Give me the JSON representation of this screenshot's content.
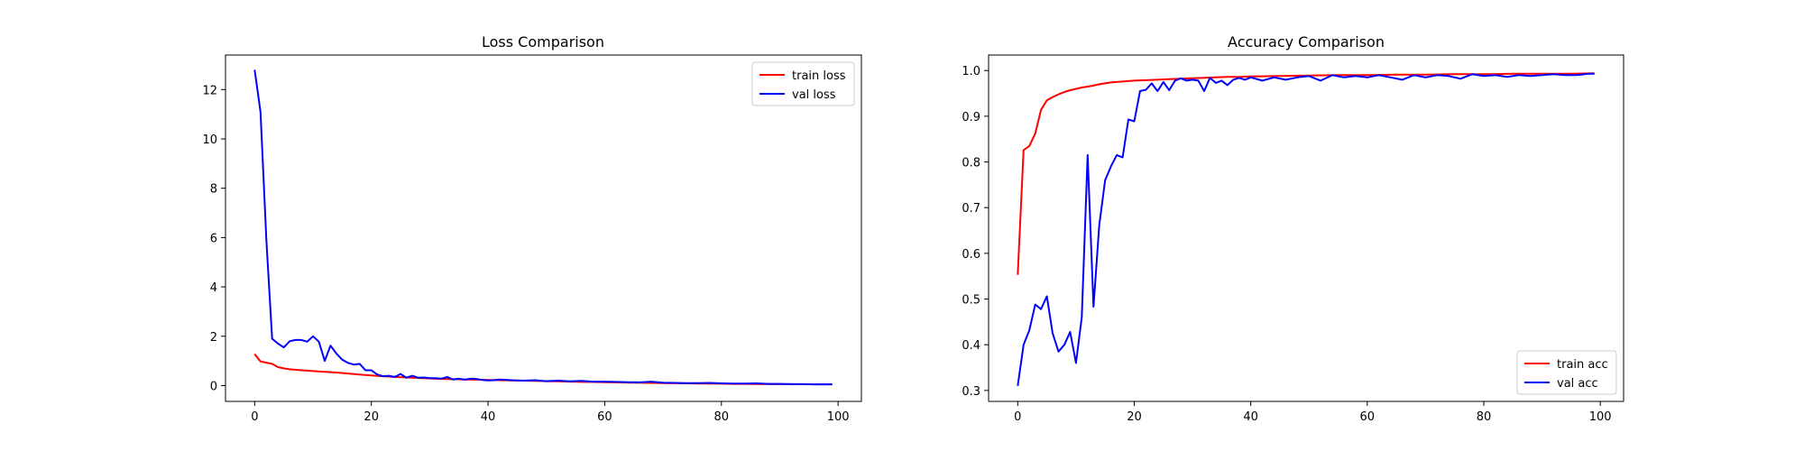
{
  "chart_data": [
    {
      "type": "line",
      "title": "Loss Comparison",
      "xlabel": "",
      "ylabel": "",
      "xlim": [
        -5,
        104
      ],
      "ylim": [
        -0.64,
        13.4
      ],
      "xticks": [
        0,
        20,
        40,
        60,
        80,
        100
      ],
      "yticks": [
        0,
        2,
        4,
        6,
        8,
        10,
        12
      ],
      "grid": false,
      "legend": "upper right",
      "series": [
        {
          "name": "train loss",
          "color": "#ff0000",
          "x": [
            0,
            1,
            2,
            3,
            4,
            5,
            6,
            8,
            10,
            12,
            14,
            16,
            18,
            20,
            22,
            24,
            26,
            28,
            30,
            32,
            34,
            36,
            38,
            40,
            42,
            44,
            46,
            48,
            50,
            52,
            54,
            56,
            58,
            60,
            62,
            64,
            66,
            68,
            70,
            72,
            74,
            76,
            78,
            80,
            82,
            84,
            86,
            88,
            90,
            92,
            94,
            96,
            98,
            99
          ],
          "y": [
            1.28,
            0.98,
            0.93,
            0.88,
            0.75,
            0.7,
            0.66,
            0.62,
            0.59,
            0.56,
            0.53,
            0.49,
            0.45,
            0.41,
            0.38,
            0.35,
            0.33,
            0.31,
            0.29,
            0.27,
            0.26,
            0.25,
            0.24,
            0.23,
            0.22,
            0.21,
            0.2,
            0.19,
            0.18,
            0.17,
            0.16,
            0.15,
            0.145,
            0.14,
            0.13,
            0.12,
            0.115,
            0.11,
            0.1,
            0.095,
            0.09,
            0.085,
            0.08,
            0.075,
            0.07,
            0.068,
            0.065,
            0.062,
            0.06,
            0.058,
            0.055,
            0.052,
            0.05,
            0.05
          ]
        },
        {
          "name": "val loss",
          "color": "#0000ff",
          "x": [
            0,
            1,
            2,
            3,
            4,
            5,
            6,
            7,
            8,
            9,
            10,
            11,
            12,
            13,
            14,
            15,
            16,
            17,
            18,
            19,
            20,
            21,
            22,
            23,
            24,
            25,
            26,
            27,
            28,
            29,
            30,
            31,
            32,
            33,
            34,
            35,
            36,
            37,
            38,
            39,
            40,
            41,
            42,
            44,
            46,
            48,
            50,
            52,
            54,
            56,
            58,
            60,
            62,
            64,
            66,
            68,
            70,
            72,
            74,
            76,
            78,
            80,
            82,
            84,
            86,
            88,
            90,
            92,
            94,
            96,
            98,
            99
          ],
          "y": [
            12.8,
            11.1,
            5.9,
            1.9,
            1.7,
            1.55,
            1.8,
            1.85,
            1.85,
            1.78,
            2.0,
            1.78,
            1.0,
            1.62,
            1.3,
            1.05,
            0.92,
            0.85,
            0.88,
            0.62,
            0.62,
            0.45,
            0.38,
            0.4,
            0.35,
            0.47,
            0.32,
            0.4,
            0.32,
            0.33,
            0.3,
            0.3,
            0.28,
            0.35,
            0.25,
            0.28,
            0.24,
            0.28,
            0.27,
            0.23,
            0.21,
            0.22,
            0.25,
            0.22,
            0.2,
            0.22,
            0.18,
            0.2,
            0.17,
            0.19,
            0.16,
            0.16,
            0.15,
            0.14,
            0.13,
            0.16,
            0.12,
            0.11,
            0.1,
            0.1,
            0.11,
            0.09,
            0.08,
            0.08,
            0.09,
            0.07,
            0.07,
            0.06,
            0.06,
            0.05,
            0.05,
            0.05
          ]
        }
      ]
    },
    {
      "type": "line",
      "title": "Accuracy Comparison",
      "xlabel": "",
      "ylabel": "",
      "xlim": [
        -5,
        104
      ],
      "ylim": [
        0.276,
        1.034
      ],
      "xticks": [
        0,
        20,
        40,
        60,
        80,
        100
      ],
      "yticks": [
        0.3,
        0.4,
        0.5,
        0.6,
        0.7,
        0.8,
        0.9,
        1.0
      ],
      "grid": false,
      "legend": "lower right",
      "series": [
        {
          "name": "train acc",
          "color": "#ff0000",
          "x": [
            0,
            1,
            2,
            3,
            4,
            5,
            6,
            7,
            8,
            9,
            10,
            11,
            12,
            13,
            14,
            15,
            16,
            17,
            18,
            19,
            20,
            22,
            24,
            26,
            28,
            30,
            32,
            34,
            36,
            38,
            40,
            45,
            50,
            55,
            60,
            65,
            70,
            75,
            80,
            85,
            90,
            95,
            99
          ],
          "y": [
            0.553,
            0.826,
            0.835,
            0.862,
            0.914,
            0.935,
            0.942,
            0.948,
            0.953,
            0.957,
            0.96,
            0.963,
            0.965,
            0.967,
            0.97,
            0.972,
            0.974,
            0.975,
            0.976,
            0.977,
            0.978,
            0.979,
            0.98,
            0.981,
            0.982,
            0.983,
            0.984,
            0.985,
            0.986,
            0.986,
            0.987,
            0.988,
            0.989,
            0.99,
            0.99,
            0.991,
            0.991,
            0.992,
            0.992,
            0.993,
            0.993,
            0.993,
            0.994
          ]
        },
        {
          "name": "val acc",
          "color": "#0000ff",
          "x": [
            0,
            1,
            2,
            3,
            4,
            5,
            6,
            7,
            8,
            9,
            10,
            11,
            12,
            13,
            14,
            15,
            16,
            17,
            18,
            19,
            20,
            21,
            22,
            23,
            24,
            25,
            26,
            27,
            28,
            29,
            30,
            31,
            32,
            33,
            34,
            35,
            36,
            37,
            38,
            39,
            40,
            42,
            44,
            46,
            48,
            50,
            52,
            54,
            56,
            58,
            60,
            62,
            64,
            66,
            68,
            70,
            72,
            74,
            76,
            78,
            80,
            82,
            84,
            86,
            88,
            90,
            92,
            94,
            96,
            98,
            99
          ],
          "y": [
            0.31,
            0.4,
            0.432,
            0.488,
            0.478,
            0.506,
            0.425,
            0.385,
            0.4,
            0.428,
            0.36,
            0.46,
            0.815,
            0.483,
            0.662,
            0.76,
            0.79,
            0.815,
            0.81,
            0.893,
            0.889,
            0.955,
            0.958,
            0.972,
            0.955,
            0.975,
            0.957,
            0.978,
            0.983,
            0.978,
            0.98,
            0.978,
            0.955,
            0.984,
            0.973,
            0.978,
            0.968,
            0.98,
            0.984,
            0.98,
            0.985,
            0.978,
            0.985,
            0.98,
            0.985,
            0.988,
            0.978,
            0.99,
            0.985,
            0.988,
            0.985,
            0.99,
            0.985,
            0.98,
            0.99,
            0.985,
            0.99,
            0.988,
            0.982,
            0.992,
            0.988,
            0.99,
            0.986,
            0.99,
            0.988,
            0.99,
            0.992,
            0.99,
            0.99,
            0.993,
            0.993
          ]
        }
      ]
    }
  ]
}
